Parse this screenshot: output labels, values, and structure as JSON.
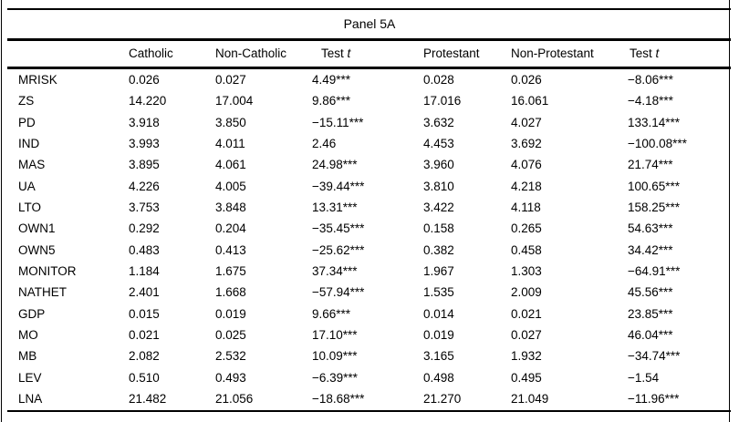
{
  "panel_title": "Panel 5A",
  "table": {
    "columns": [
      {
        "label": ""
      },
      {
        "label": "Catholic"
      },
      {
        "label": "Non-Catholic"
      },
      {
        "label": "Test",
        "italic_suffix": "t"
      },
      {
        "label": "Protestant"
      },
      {
        "label": "Non-Protestant"
      },
      {
        "label": "Test",
        "italic_suffix": "t"
      }
    ],
    "rows": [
      {
        "variable": "MRISK",
        "catholic": "0.026",
        "non_catholic": "0.027",
        "test_t_catholic": "4.49***",
        "protestant": "0.028",
        "non_protestant": "0.026",
        "test_t_protestant": "−8.06***"
      },
      {
        "variable": "ZS",
        "catholic": "14.220",
        "non_catholic": "17.004",
        "test_t_catholic": "9.86***",
        "protestant": "17.016",
        "non_protestant": "16.061",
        "test_t_protestant": "−4.18***"
      },
      {
        "variable": "PD",
        "catholic": "3.918",
        "non_catholic": "3.850",
        "test_t_catholic": "−15.11***",
        "protestant": "3.632",
        "non_protestant": "4.027",
        "test_t_protestant": "133.14***"
      },
      {
        "variable": "IND",
        "catholic": "3.993",
        "non_catholic": "4.011",
        "test_t_catholic": "2.46",
        "protestant": "4.453",
        "non_protestant": "3.692",
        "test_t_protestant": "−100.08***"
      },
      {
        "variable": "MAS",
        "catholic": "3.895",
        "non_catholic": "4.061",
        "test_t_catholic": "24.98***",
        "protestant": "3.960",
        "non_protestant": "4.076",
        "test_t_protestant": "21.74***"
      },
      {
        "variable": "UA",
        "catholic": "4.226",
        "non_catholic": "4.005",
        "test_t_catholic": "−39.44***",
        "protestant": "3.810",
        "non_protestant": "4.218",
        "test_t_protestant": "100.65***"
      },
      {
        "variable": "LTO",
        "catholic": "3.753",
        "non_catholic": "3.848",
        "test_t_catholic": "13.31***",
        "protestant": "3.422",
        "non_protestant": "4.118",
        "test_t_protestant": "158.25***"
      },
      {
        "variable": "OWN1",
        "catholic": "0.292",
        "non_catholic": "0.204",
        "test_t_catholic": "−35.45***",
        "protestant": "0.158",
        "non_protestant": "0.265",
        "test_t_protestant": "54.63***"
      },
      {
        "variable": "OWN5",
        "catholic": "0.483",
        "non_catholic": "0.413",
        "test_t_catholic": "−25.62***",
        "protestant": "0.382",
        "non_protestant": "0.458",
        "test_t_protestant": "34.42***"
      },
      {
        "variable": "MONITOR",
        "catholic": "1.184",
        "non_catholic": "1.675",
        "test_t_catholic": "37.34***",
        "protestant": "1.967",
        "non_protestant": "1.303",
        "test_t_protestant": "−64.91***"
      },
      {
        "variable": "NATHET",
        "catholic": "2.401",
        "non_catholic": "1.668",
        "test_t_catholic": "−57.94***",
        "protestant": "1.535",
        "non_protestant": "2.009",
        "test_t_protestant": "45.56***"
      },
      {
        "variable": "GDP",
        "catholic": "0.015",
        "non_catholic": "0.019",
        "test_t_catholic": "9.66***",
        "protestant": "0.014",
        "non_protestant": "0.021",
        "test_t_protestant": "23.85***"
      },
      {
        "variable": "MO",
        "catholic": "0.021",
        "non_catholic": "0.025",
        "test_t_catholic": "17.10***",
        "protestant": "0.019",
        "non_protestant": "0.027",
        "test_t_protestant": "46.04***"
      },
      {
        "variable": "MB",
        "catholic": "2.082",
        "non_catholic": "2.532",
        "test_t_catholic": "10.09***",
        "protestant": "3.165",
        "non_protestant": "1.932",
        "test_t_protestant": "−34.74***"
      },
      {
        "variable": "LEV",
        "catholic": "0.510",
        "non_catholic": "0.493",
        "test_t_catholic": "−6.39***",
        "protestant": "0.498",
        "non_protestant": "0.495",
        "test_t_protestant": "−1.54"
      },
      {
        "variable": "LNA",
        "catholic": "21.482",
        "non_catholic": "21.056",
        "test_t_catholic": "−18.68***",
        "protestant": "21.270",
        "non_protestant": "21.049",
        "test_t_protestant": "−11.96***"
      }
    ]
  }
}
